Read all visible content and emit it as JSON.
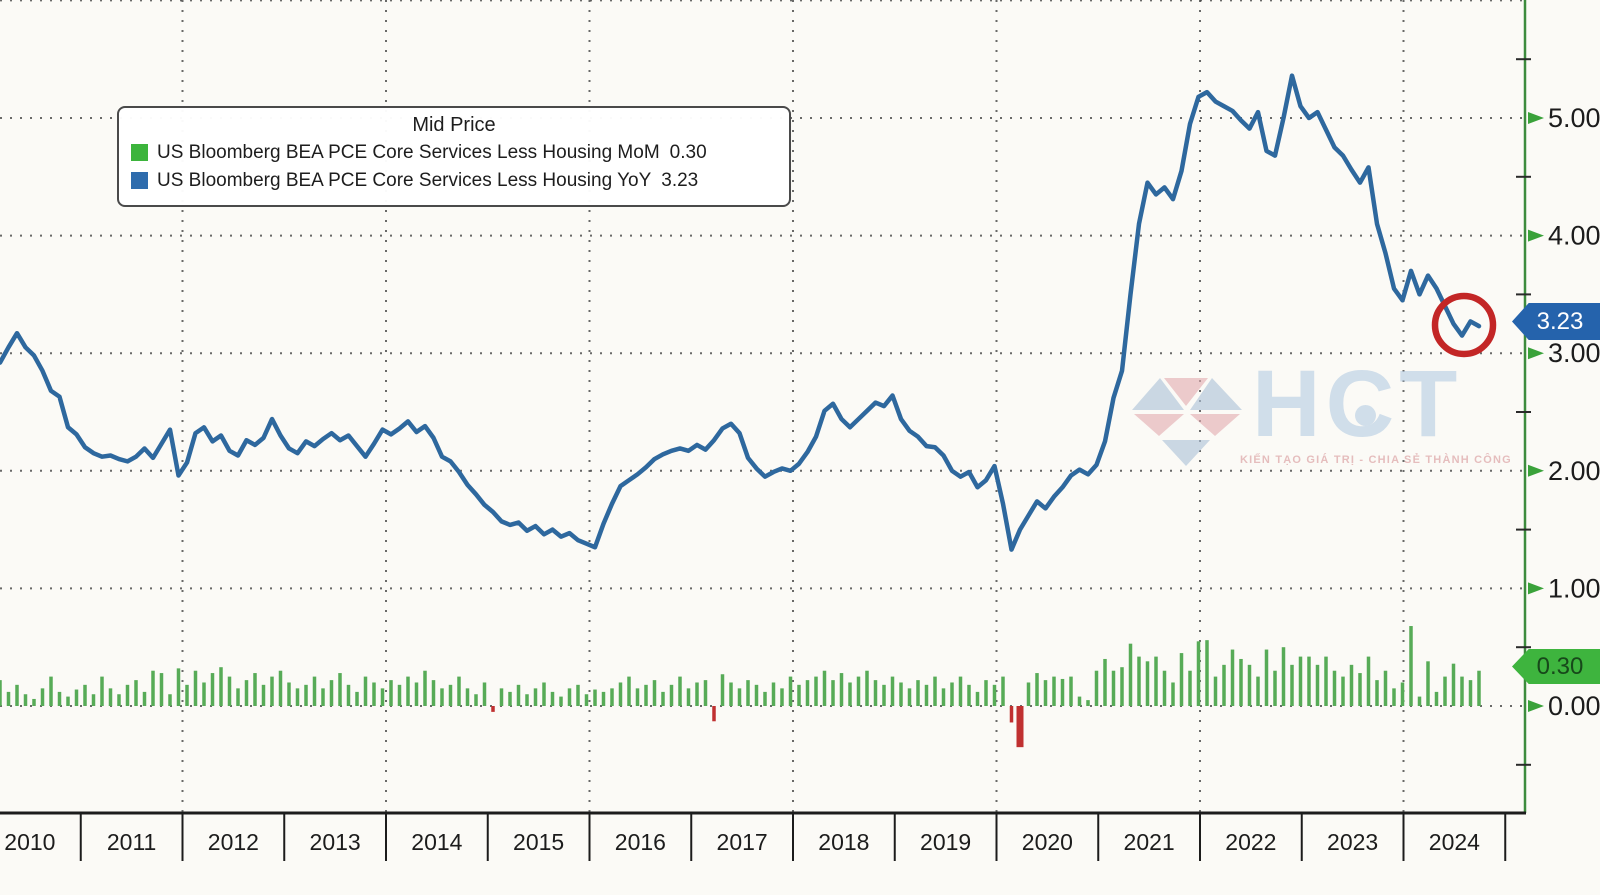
{
  "legend": {
    "title": "Mid Price",
    "items": [
      {
        "label": "US Bloomberg BEA PCE Core Services Less Housing MoM",
        "value": "0.30",
        "color": "#3cb43c"
      },
      {
        "label": "US Bloomberg BEA PCE Core Services Less Housing YoY",
        "value": "3.23",
        "color": "#2e6cad"
      }
    ]
  },
  "badges": {
    "yoy": {
      "text": "3.23",
      "bg": "#2563ac",
      "fg": "#ffffff"
    },
    "mom": {
      "text": "0.30",
      "bg": "#3eb43e",
      "fg": "#17481a"
    }
  },
  "watermark": {
    "text": "HCT",
    "tagline": "KIẾN TẠO GIÁ TRỊ - CHIA SẺ THÀNH CÔNG"
  },
  "chart_data": {
    "type": "line+bar",
    "title": "Mid Price",
    "x_axis": {
      "years": [
        "2010",
        "2011",
        "2012",
        "2013",
        "2014",
        "2015",
        "2016",
        "2017",
        "2018",
        "2019",
        "2020",
        "2021",
        "2022",
        "2023",
        "2024"
      ],
      "gridlines_at": [
        "2012",
        "2014",
        "2016",
        "2018",
        "2020",
        "2022",
        "2024"
      ]
    },
    "y_axis": {
      "side": "right",
      "tick_labels": [
        "5.00",
        "4.00",
        "3.00",
        "2.00",
        "1.00",
        "0.00"
      ],
      "tick_values": [
        5,
        4,
        3,
        2,
        1,
        0
      ],
      "minor_tick_step": 0.5,
      "range_shown": [
        -0.9,
        6.0
      ],
      "grid": "dotted"
    },
    "series": [
      {
        "name": "US Bloomberg BEA PCE Core Services Less Housing YoY",
        "type": "line",
        "color": "#2e689e",
        "last_value": 3.23,
        "values": [
          2.92,
          3.05,
          3.17,
          3.05,
          2.98,
          2.85,
          2.68,
          2.63,
          2.37,
          2.31,
          2.2,
          2.15,
          2.12,
          2.13,
          2.1,
          2.08,
          2.12,
          2.19,
          2.11,
          2.23,
          2.35,
          1.96,
          2.07,
          2.32,
          2.37,
          2.25,
          2.3,
          2.17,
          2.13,
          2.26,
          2.22,
          2.28,
          2.44,
          2.3,
          2.19,
          2.15,
          2.25,
          2.21,
          2.27,
          2.32,
          2.26,
          2.3,
          2.21,
          2.12,
          2.23,
          2.35,
          2.31,
          2.36,
          2.42,
          2.33,
          2.38,
          2.28,
          2.12,
          2.08,
          1.99,
          1.88,
          1.8,
          1.71,
          1.65,
          1.57,
          1.54,
          1.56,
          1.49,
          1.53,
          1.46,
          1.5,
          1.44,
          1.47,
          1.41,
          1.38,
          1.35,
          1.55,
          1.72,
          1.87,
          1.92,
          1.97,
          2.03,
          2.1,
          2.14,
          2.17,
          2.19,
          2.17,
          2.22,
          2.18,
          2.26,
          2.36,
          2.4,
          2.32,
          2.11,
          2.02,
          1.95,
          1.99,
          2.02,
          2.0,
          2.06,
          2.16,
          2.29,
          2.51,
          2.57,
          2.44,
          2.37,
          2.44,
          2.51,
          2.58,
          2.55,
          2.64,
          2.44,
          2.34,
          2.29,
          2.21,
          2.2,
          2.13,
          2.0,
          1.95,
          1.99,
          1.86,
          1.92,
          2.04,
          1.72,
          1.33,
          1.5,
          1.62,
          1.74,
          1.68,
          1.78,
          1.86,
          1.96,
          2.01,
          1.97,
          2.05,
          2.25,
          2.62,
          2.85,
          3.5,
          4.1,
          4.45,
          4.35,
          4.41,
          4.31,
          4.55,
          4.95,
          5.18,
          5.22,
          5.14,
          5.1,
          5.06,
          4.98,
          4.91,
          5.05,
          4.72,
          4.68,
          5.0,
          5.36,
          5.1,
          5.0,
          5.05,
          4.9,
          4.75,
          4.68,
          4.56,
          4.45,
          4.58,
          4.1,
          3.85,
          3.55,
          3.45,
          3.7,
          3.5,
          3.66,
          3.55,
          3.4,
          3.25,
          3.15,
          3.27,
          3.23
        ]
      },
      {
        "name": "US Bloomberg BEA PCE Core Services Less Housing MoM",
        "type": "bar",
        "color_positive": "#57ab57",
        "color_negative": "#c03030",
        "last_value": 0.3,
        "values": [
          0.22,
          0.12,
          0.18,
          0.1,
          0.06,
          0.15,
          0.25,
          0.12,
          0.08,
          0.14,
          0.18,
          0.1,
          0.25,
          0.15,
          0.1,
          0.18,
          0.22,
          0.12,
          0.3,
          0.28,
          0.1,
          0.32,
          0.18,
          0.3,
          0.2,
          0.28,
          0.33,
          0.25,
          0.15,
          0.22,
          0.28,
          0.18,
          0.25,
          0.3,
          0.2,
          0.15,
          0.18,
          0.25,
          0.15,
          0.22,
          0.28,
          0.18,
          0.12,
          0.25,
          0.2,
          0.15,
          0.22,
          0.18,
          0.25,
          0.2,
          0.3,
          0.22,
          0.15,
          0.18,
          0.25,
          0.15,
          0.1,
          0.2,
          -0.05,
          0.15,
          0.12,
          0.18,
          0.1,
          0.15,
          0.2,
          0.12,
          0.08,
          0.15,
          0.18,
          0.1,
          0.14,
          0.12,
          0.15,
          0.2,
          0.25,
          0.15,
          0.18,
          0.22,
          0.12,
          0.18,
          0.25,
          0.15,
          0.2,
          0.22,
          -0.13,
          0.27,
          0.2,
          0.15,
          0.22,
          0.18,
          0.12,
          0.2,
          0.15,
          0.25,
          0.18,
          0.22,
          0.25,
          0.3,
          0.22,
          0.28,
          0.2,
          0.25,
          0.3,
          0.22,
          0.18,
          0.25,
          0.2,
          0.15,
          0.22,
          0.18,
          0.25,
          0.15,
          0.2,
          0.25,
          0.18,
          0.12,
          0.22,
          0.18,
          0.25,
          -0.14,
          -0.35,
          0.2,
          0.28,
          0.22,
          0.25,
          0.23,
          0.25,
          0.08,
          0.05,
          0.3,
          0.4,
          0.3,
          0.33,
          0.53,
          0.42,
          0.38,
          0.42,
          0.3,
          0.2,
          0.45,
          0.3,
          0.55,
          0.56,
          0.25,
          0.35,
          0.48,
          0.4,
          0.35,
          0.25,
          0.48,
          0.3,
          0.5,
          0.35,
          0.42,
          0.42,
          0.35,
          0.42,
          0.3,
          0.25,
          0.35,
          0.28,
          0.42,
          0.22,
          0.3,
          0.15,
          0.2,
          0.68,
          0.08,
          0.38,
          0.12,
          0.25,
          0.36,
          0.25,
          0.22,
          0.3
        ]
      }
    ],
    "annotation": {
      "shape": "circle",
      "color": "#c32626",
      "target": "last YoY data points"
    }
  }
}
